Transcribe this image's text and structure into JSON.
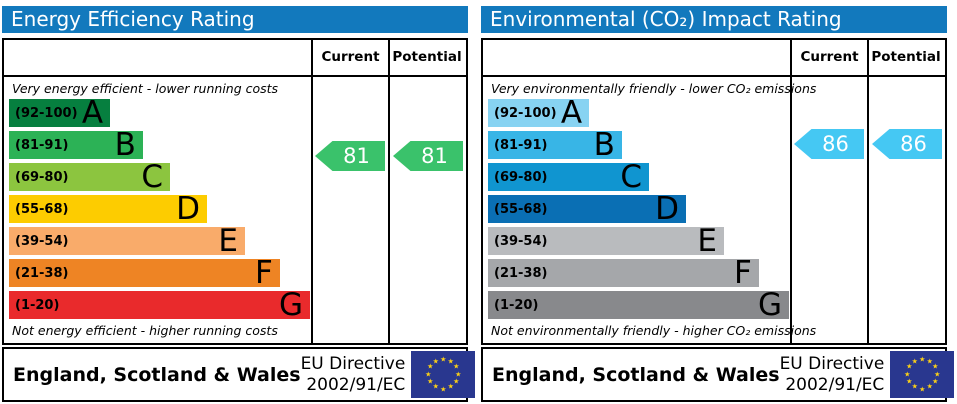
{
  "colors": {
    "header_bg": "#1279bd",
    "border": "#000000",
    "flag_bg": "#29378f",
    "flag_star": "#fdd216",
    "energy_arrow": "#3ac26b",
    "co2_arrow": "#45c8f3"
  },
  "panels": [
    {
      "title": "Energy Efficiency Rating",
      "columns": {
        "current": "Current",
        "potential": "Potential"
      },
      "top_note": "Very energy efficient - lower running costs",
      "bottom_note": "Not energy efficient - higher running costs",
      "bands": [
        {
          "letter": "A",
          "range": "(92-100)",
          "low": 92,
          "high": 100,
          "color": "#067f3f",
          "width_pct": 33.6
        },
        {
          "letter": "B",
          "range": "(81-91)",
          "low": 81,
          "high": 91,
          "color": "#2cb256",
          "width_pct": 44.5
        },
        {
          "letter": "C",
          "range": "(69-80)",
          "low": 69,
          "high": 80,
          "color": "#8cc53f",
          "width_pct": 53.5
        },
        {
          "letter": "D",
          "range": "(55-68)",
          "low": 55,
          "high": 68,
          "color": "#fdcc00",
          "width_pct": 65.8
        },
        {
          "letter": "E",
          "range": "(39-54)",
          "low": 39,
          "high": 54,
          "color": "#f9ab6a",
          "width_pct": 78.4
        },
        {
          "letter": "F",
          "range": "(21-38)",
          "low": 21,
          "high": 38,
          "color": "#ee8424",
          "width_pct": 90.0
        },
        {
          "letter": "G",
          "range": "(1-20)",
          "low": 1,
          "high": 20,
          "color": "#e92a2c",
          "width_pct": 100
        }
      ],
      "arrows": {
        "current": 81,
        "potential": 81,
        "color": "#3ac26b"
      },
      "footer": {
        "region": "England, Scotland & Wales",
        "directive_line1": "EU Directive",
        "directive_line2": "2002/91/EC"
      }
    },
    {
      "title": "Environmental (CO₂) Impact Rating",
      "columns": {
        "current": "Current",
        "potential": "Potential"
      },
      "top_note": "Very environmentally friendly - lower CO₂ emissions",
      "bottom_note": "Not environmentally friendly - higher CO₂ emissions",
      "bands": [
        {
          "letter": "A",
          "range": "(92-100)",
          "low": 92,
          "high": 100,
          "color": "#87d3f2",
          "width_pct": 33.6
        },
        {
          "letter": "B",
          "range": "(81-91)",
          "low": 81,
          "high": 91,
          "color": "#38b5e6",
          "width_pct": 44.5
        },
        {
          "letter": "C",
          "range": "(69-80)",
          "low": 69,
          "high": 80,
          "color": "#1095d0",
          "width_pct": 53.5
        },
        {
          "letter": "D",
          "range": "(55-68)",
          "low": 55,
          "high": 68,
          "color": "#0a6fb4",
          "width_pct": 65.8
        },
        {
          "letter": "E",
          "range": "(39-54)",
          "low": 39,
          "high": 54,
          "color": "#b9bbbe",
          "width_pct": 78.4
        },
        {
          "letter": "F",
          "range": "(21-38)",
          "low": 21,
          "high": 38,
          "color": "#a5a7aa",
          "width_pct": 90.0
        },
        {
          "letter": "G",
          "range": "(1-20)",
          "low": 1,
          "high": 20,
          "color": "#88898c",
          "width_pct": 100
        }
      ],
      "arrows": {
        "current": 86,
        "potential": 86,
        "color": "#45c8f3"
      },
      "footer": {
        "region": "England, Scotland & Wales",
        "directive_line1": "EU Directive",
        "directive_line2": "2002/91/EC"
      }
    }
  ],
  "chart_data": [
    {
      "type": "bar",
      "orientation": "horizontal",
      "title": "Energy Efficiency Rating",
      "categories": [
        "A",
        "B",
        "C",
        "D",
        "E",
        "F",
        "G"
      ],
      "category_ranges": [
        "92-100",
        "81-91",
        "69-80",
        "55-68",
        "39-54",
        "21-38",
        "1-20"
      ],
      "values": [
        33.6,
        44.5,
        53.5,
        65.8,
        78.4,
        90,
        100
      ],
      "values_note": "bar length as % of band scale width (fixed EPC staircase)",
      "bar_colors": [
        "#067f3f",
        "#2cb256",
        "#8cc53f",
        "#fdcc00",
        "#f9ab6a",
        "#ee8424",
        "#e92a2c"
      ],
      "markers": [
        {
          "label": "Current",
          "value": 81,
          "band": "B"
        },
        {
          "label": "Potential",
          "value": 81,
          "band": "B"
        }
      ],
      "top_caption": "Very energy efficient - lower running costs",
      "bottom_caption": "Not energy efficient - higher running costs",
      "footer": "England, Scotland & Wales — EU Directive 2002/91/EC",
      "legend_position": "none",
      "grid": false
    },
    {
      "type": "bar",
      "orientation": "horizontal",
      "title": "Environmental (CO₂) Impact Rating",
      "categories": [
        "A",
        "B",
        "C",
        "D",
        "E",
        "F",
        "G"
      ],
      "category_ranges": [
        "92-100",
        "81-91",
        "69-80",
        "55-68",
        "39-54",
        "21-38",
        "1-20"
      ],
      "values": [
        33.6,
        44.5,
        53.5,
        65.8,
        78.4,
        90,
        100
      ],
      "values_note": "bar length as % of band scale width (fixed EPC staircase)",
      "bar_colors": [
        "#87d3f2",
        "#38b5e6",
        "#1095d0",
        "#0a6fb4",
        "#b9bbbe",
        "#a5a7aa",
        "#88898c"
      ],
      "markers": [
        {
          "label": "Current",
          "value": 86,
          "band": "B"
        },
        {
          "label": "Potential",
          "value": 86,
          "band": "B"
        }
      ],
      "top_caption": "Very environmentally friendly - lower CO₂ emissions",
      "bottom_caption": "Not environmentally friendly - higher CO₂ emissions",
      "footer": "England, Scotland & Wales — EU Directive 2002/91/EC",
      "legend_position": "none",
      "grid": false
    }
  ]
}
